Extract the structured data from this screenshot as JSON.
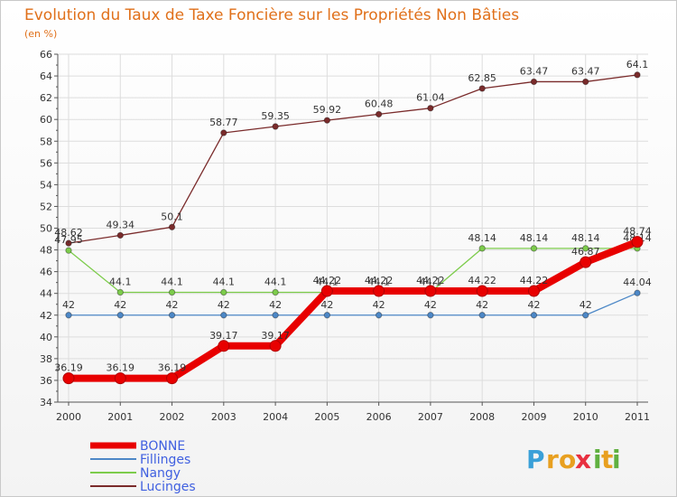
{
  "chart_data": {
    "type": "line",
    "title": "Evolution du Taux de Taxe Foncière sur les Propriétés Non Bâties",
    "ylabel": "(en %)",
    "xlabel": "",
    "ylim": [
      34,
      66
    ],
    "ytick_step": 2,
    "categories": [
      "2000",
      "2001",
      "2002",
      "2003",
      "2004",
      "2005",
      "2006",
      "2007",
      "2008",
      "2009",
      "2010",
      "2011"
    ],
    "series": [
      {
        "name": "Lucinges",
        "color": "#7a2b2b",
        "values": [
          48.62,
          49.34,
          50.1,
          58.77,
          59.35,
          59.92,
          60.48,
          61.04,
          62.85,
          63.47,
          63.47,
          64.1
        ],
        "labels": [
          "48.62",
          "49.34",
          "50.1",
          "58.77",
          "59.35",
          "59.92",
          "60.48",
          "61.04",
          "62.85",
          "63.47",
          "63.47",
          "64.1"
        ]
      },
      {
        "name": "Nangy",
        "color": "#7dcc4c",
        "values": [
          47.95,
          44.1,
          44.1,
          44.1,
          44.1,
          44.1,
          44.1,
          44.1,
          48.14,
          48.14,
          48.14,
          48.14
        ],
        "labels": [
          "47.95",
          "44.1",
          "44.1",
          "44.1",
          "44.1",
          "44.1",
          "44.1",
          "44.1",
          "48.14",
          "48.14",
          "48.14",
          "48.14"
        ]
      },
      {
        "name": "Fillinges",
        "color": "#4d88c7",
        "values": [
          42,
          42,
          42,
          42,
          42,
          42,
          42,
          42,
          42,
          42,
          42,
          44.04
        ],
        "labels": [
          "42",
          "42",
          "42",
          "42",
          "42",
          "42",
          "42",
          "42",
          "42",
          "42",
          "42",
          "44.04"
        ]
      },
      {
        "name": "BONNE",
        "color": "#e80000",
        "values": [
          36.19,
          36.19,
          36.19,
          39.17,
          39.17,
          44.22,
          44.22,
          44.22,
          44.22,
          44.22,
          46.87,
          48.74
        ],
        "labels": [
          "36.19",
          "36.19",
          "36.19",
          "39.17",
          "39.17",
          "44.22",
          "44.22",
          "44.22",
          "44.22",
          "44.22",
          "46.87",
          "48.74"
        ]
      }
    ],
    "legend": [
      {
        "name": "BONNE",
        "color": "#e80000",
        "text_color": "#4060e0",
        "bold": true
      },
      {
        "name": "Fillinges",
        "color": "#4d88c7",
        "text_color": "#4060e0",
        "bold": false
      },
      {
        "name": "Nangy",
        "color": "#7dcc4c",
        "text_color": "#4060e0",
        "bold": false
      },
      {
        "name": "Lucinges",
        "color": "#7a2b2b",
        "text_color": "#4060e0",
        "bold": false
      }
    ]
  },
  "logo": {
    "letters": [
      "P",
      "r",
      "o",
      "x",
      "i",
      "t",
      "i"
    ],
    "colors": [
      "#3aa0d8",
      "#e8a020",
      "#e8a020",
      "#e83040",
      "#60b040",
      "#e8a020",
      "#60b040"
    ]
  }
}
